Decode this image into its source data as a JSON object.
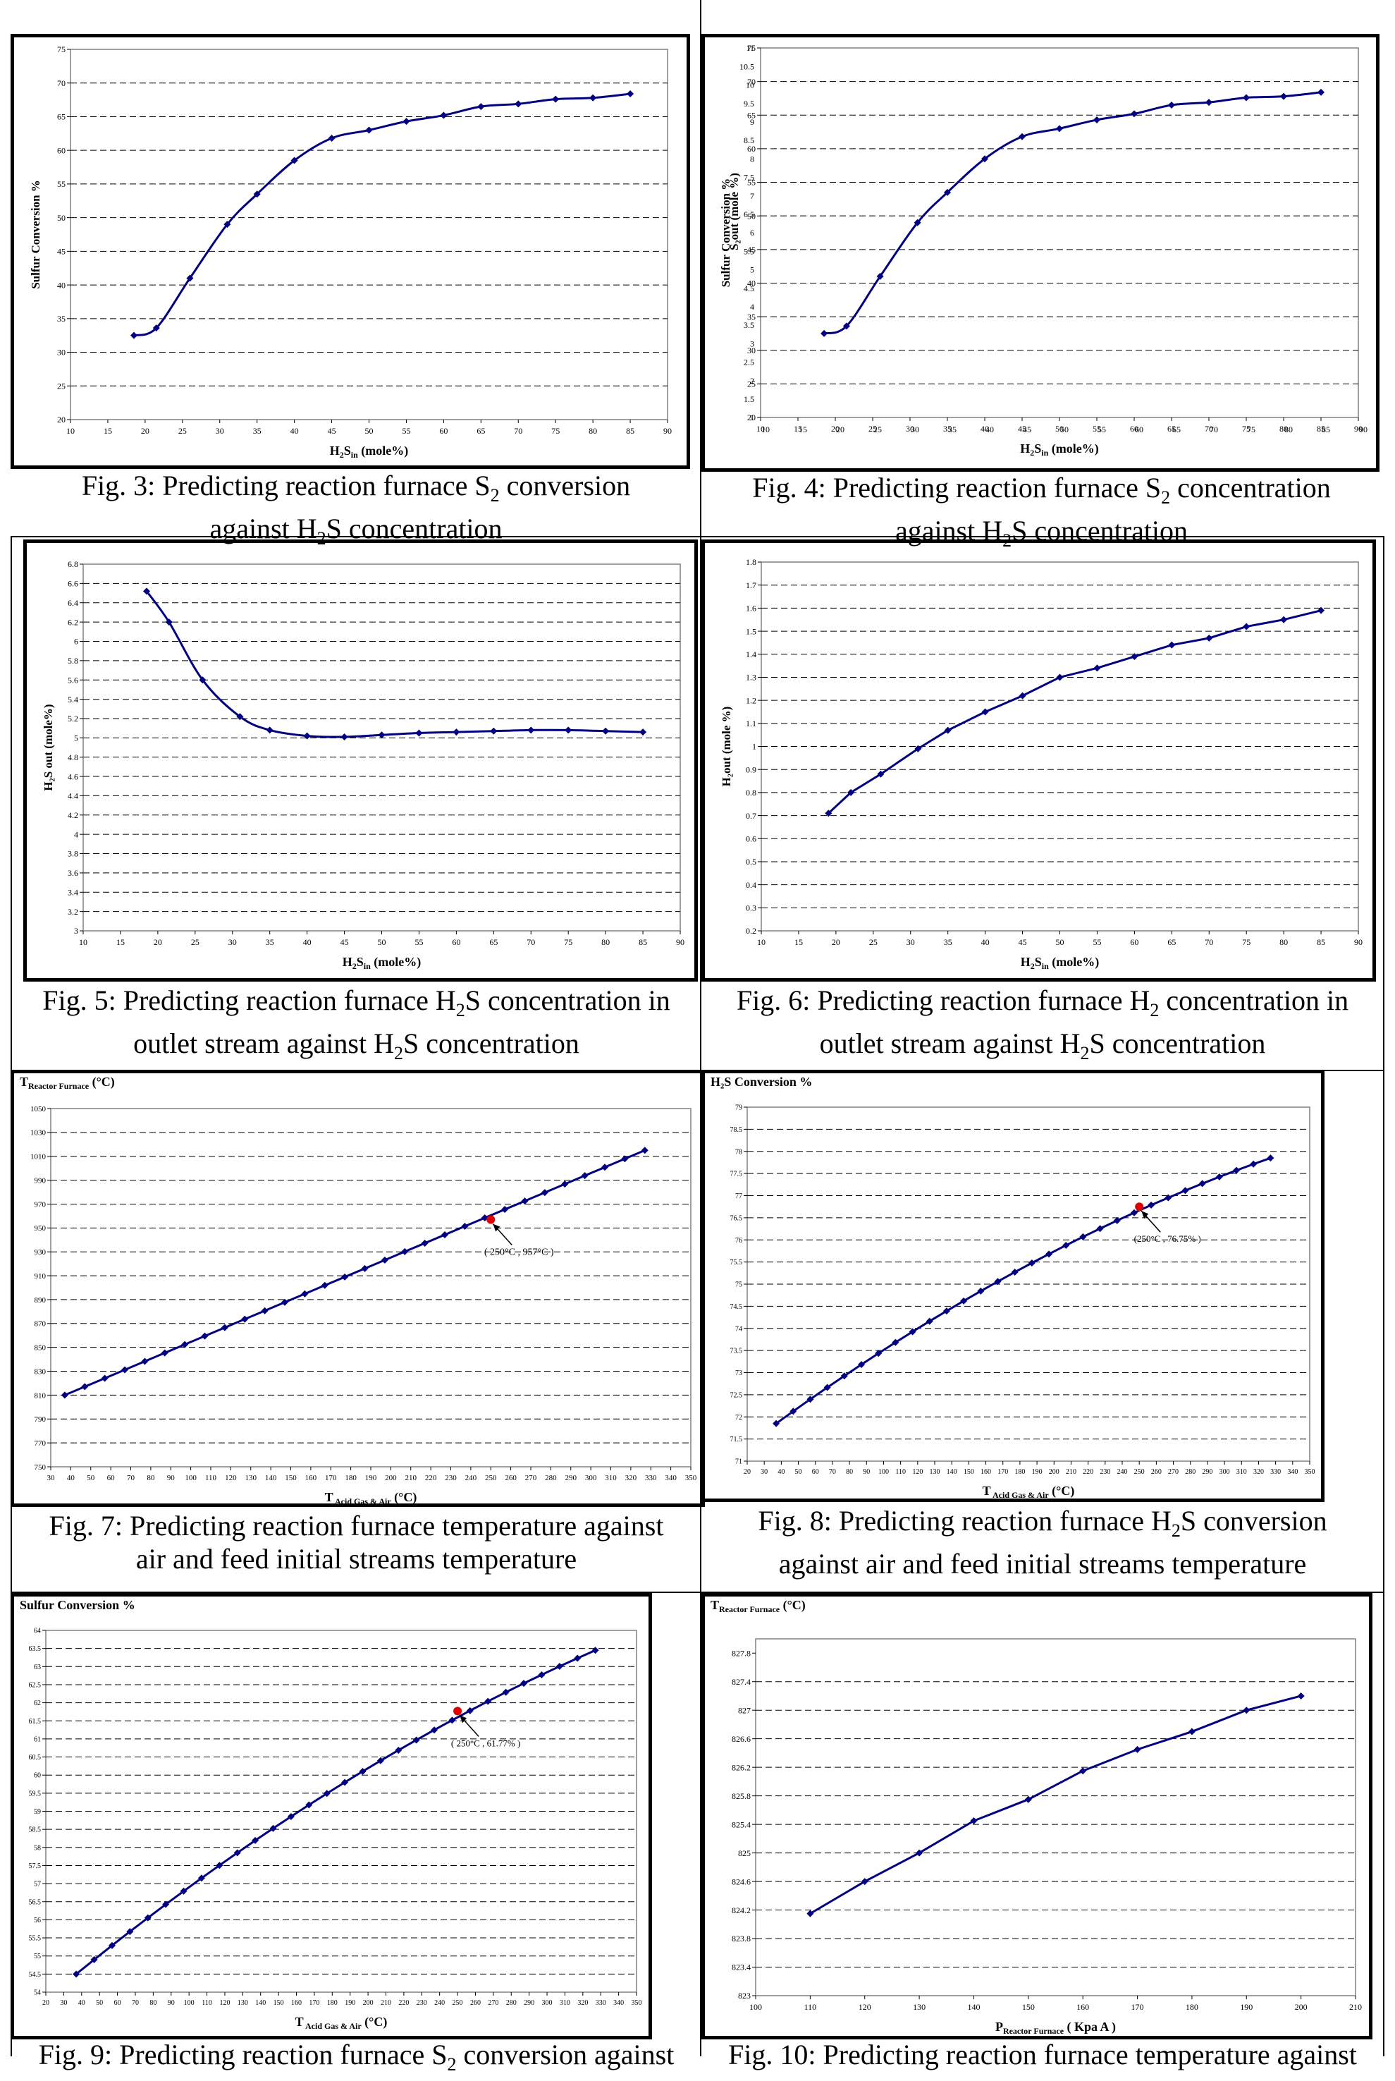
{
  "figures": [
    {
      "id": "fig3",
      "caption_line1": "Fig. 3: Predicting reaction furnace S",
      "caption_line1_sub": "2",
      "caption_line1_tail": "  conversion",
      "caption_line2": "against  H",
      "caption_line2_sub": "2",
      "caption_line2_tail": "S concentration"
    },
    {
      "id": "fig4",
      "caption_line1": "Fig. 4: Predicting reaction furnace S",
      "caption_line1_sub": "2",
      "caption_line1_tail": "  concentration",
      "caption_line2": "against  H",
      "caption_line2_sub": "2",
      "caption_line2_tail": "S concentration"
    },
    {
      "id": "fig5",
      "caption_line1": "Fig. 5: Predicting reaction furnace H",
      "caption_line1_sub": "2",
      "caption_line1_tail": "S concentration  in",
      "caption_line2": "outlet stream against H",
      "caption_line2_sub": "2",
      "caption_line2_tail": "S concentration"
    },
    {
      "id": "fig6",
      "caption_line1": "Fig. 6: Predicting reaction furnace H",
      "caption_line1_sub": "2",
      "caption_line1_tail": " concentration  in",
      "caption_line2": "outlet stream against H",
      "caption_line2_sub": "2",
      "caption_line2_tail": "S concentration"
    },
    {
      "id": "fig7",
      "caption_line1": "Fig. 7: Predicting reaction furnace temperature against",
      "caption_line1_sub": "",
      "caption_line1_tail": "",
      "caption_line2": "air and feed initial streams temperature",
      "caption_line2_sub": "",
      "caption_line2_tail": ""
    },
    {
      "id": "fig8",
      "caption_line1": "Fig. 8: Predicting reaction furnace H",
      "caption_line1_sub": "2",
      "caption_line1_tail": "S conversion",
      "caption_line2": "against air and feed initial streams temperature",
      "caption_line2_sub": "",
      "caption_line2_tail": ""
    },
    {
      "id": "fig9",
      "caption_line1": "Fig. 9: Predicting reaction furnace S",
      "caption_line1_sub": "2",
      "caption_line1_tail": " conversion against",
      "caption_line2": "",
      "caption_line2_sub": "",
      "caption_line2_tail": ""
    },
    {
      "id": "fig10",
      "caption_line1": "Fig. 10: Predicting reaction furnace temperature against",
      "caption_line1_sub": "",
      "caption_line1_tail": "",
      "caption_line2": "",
      "caption_line2_sub": "",
      "caption_line2_tail": ""
    }
  ],
  "chart_data": [
    {
      "id": "fig3",
      "type": "line",
      "title": "",
      "ylabel": "Sulfur Conversion %",
      "xlabel_main": "H",
      "xlabel_sub1": "2",
      "xlabel_mid": "S",
      "xlabel_sub2": "in",
      "xlabel_tail": " (mole%)",
      "xlim": [
        10,
        90
      ],
      "xticks": [
        10,
        15,
        20,
        25,
        30,
        35,
        40,
        45,
        50,
        55,
        60,
        65,
        70,
        75,
        80,
        85,
        90
      ],
      "ylim": [
        20,
        75
      ],
      "yticks": [
        20,
        25,
        30,
        35,
        40,
        45,
        50,
        55,
        60,
        65,
        70,
        75
      ],
      "x": [
        18.5,
        21.5,
        26,
        31,
        35,
        40,
        45,
        50,
        55,
        60,
        65,
        70,
        75,
        80,
        85
      ],
      "y": [
        32.5,
        33.6,
        41,
        49,
        53.5,
        58.5,
        61.8,
        63,
        64.3,
        65.2,
        66.5,
        66.9,
        67.6,
        67.8,
        68.4
      ],
      "smooth": true,
      "grid": true
    },
    {
      "id": "fig4",
      "type": "line",
      "title": "",
      "ylabel": "Sulfur Conversion %",
      "ylabel2": "S₂out (mole %)",
      "xlabel_main": "H",
      "xlabel_sub1": "2",
      "xlabel_mid": "S",
      "xlabel_sub2": "in",
      "xlabel_tail": " (mole%)",
      "xlim": [
        10,
        90
      ],
      "xticks": [
        10,
        15,
        20,
        25,
        30,
        35,
        40,
        45,
        50,
        55,
        60,
        65,
        70,
        75,
        80,
        85,
        90
      ],
      "ylim": [
        20,
        75
      ],
      "yticks": [
        20,
        25,
        30,
        35,
        40,
        45,
        50,
        55,
        60,
        65,
        70,
        75
      ],
      "yticks2": [
        "1",
        "1.5",
        "2",
        "2.5",
        "3",
        "3.5",
        "4",
        "4.5",
        "5",
        "5.5",
        "6",
        "6.5",
        "7",
        "7.5",
        "8",
        "8.5",
        "9",
        "9.5",
        "10",
        "10.5",
        "11"
      ],
      "x": [
        18.5,
        21.5,
        26,
        31,
        35,
        40,
        45,
        50,
        55,
        60,
        65,
        70,
        75,
        80,
        85
      ],
      "y": [
        32.5,
        33.6,
        41,
        49,
        53.5,
        58.5,
        61.8,
        63,
        64.3,
        65.2,
        66.5,
        66.9,
        67.6,
        67.8,
        68.4
      ],
      "smooth": true,
      "grid": true
    },
    {
      "id": "fig5",
      "type": "line",
      "title": "",
      "ylabel": "H₂S out (mole%)",
      "xlabel_main": "H",
      "xlabel_sub1": "2",
      "xlabel_mid": "S",
      "xlabel_sub2": "in",
      "xlabel_tail": " (mole%)",
      "xlim": [
        10,
        90
      ],
      "xticks": [
        10,
        15,
        20,
        25,
        30,
        35,
        40,
        45,
        50,
        55,
        60,
        65,
        70,
        75,
        80,
        85,
        90
      ],
      "ylim": [
        3,
        6.8
      ],
      "yticks": [
        3,
        3.2,
        3.4,
        3.6,
        3.8,
        4,
        4.2,
        4.4,
        4.6,
        4.8,
        5,
        5.2,
        5.4,
        5.6,
        5.8,
        6,
        6.2,
        6.4,
        6.6,
        6.8
      ],
      "x": [
        18.5,
        21.5,
        26,
        31,
        35,
        40,
        45,
        50,
        55,
        60,
        65,
        70,
        75,
        80,
        85
      ],
      "y": [
        6.52,
        6.2,
        5.6,
        5.22,
        5.08,
        5.02,
        5.01,
        5.03,
        5.05,
        5.06,
        5.07,
        5.08,
        5.08,
        5.07,
        5.06
      ],
      "smooth": true,
      "grid": true
    },
    {
      "id": "fig6",
      "type": "line",
      "title": "",
      "ylabel": "H₂out (mole %)",
      "xlabel_main": "H",
      "xlabel_sub1": "2",
      "xlabel_mid": "S",
      "xlabel_sub2": "in",
      "xlabel_tail": " (mole%)",
      "xlim": [
        10,
        90
      ],
      "xticks": [
        10,
        15,
        20,
        25,
        30,
        35,
        40,
        45,
        50,
        55,
        60,
        65,
        70,
        75,
        80,
        85,
        90
      ],
      "ylim": [
        0.2,
        1.8
      ],
      "yticks": [
        0.2,
        0.3,
        0.4,
        0.5,
        0.6,
        0.7,
        0.8,
        0.9,
        1,
        1.1,
        1.2,
        1.3,
        1.4,
        1.5,
        1.6,
        1.7,
        1.8
      ],
      "x": [
        19,
        22,
        26,
        31,
        35,
        40,
        45,
        50,
        55,
        60,
        65,
        70,
        75,
        80,
        85
      ],
      "y": [
        0.71,
        0.8,
        0.88,
        0.99,
        1.07,
        1.15,
        1.22,
        1.3,
        1.34,
        1.39,
        1.44,
        1.47,
        1.52,
        1.55,
        1.59
      ],
      "smooth": false,
      "grid": true
    },
    {
      "id": "fig7",
      "type": "line",
      "title": "",
      "ylabel_top": "T",
      "ylabel_top_sub": "Reactor Furnace",
      "ylabel_top_tail": " (°C)",
      "xlabel_main": "T",
      "xlabel_sub1": " Acid Gas & Air",
      "xlabel_mid": "",
      "xlabel_sub2": "",
      "xlabel_tail": " (°C)",
      "xlim": [
        30,
        350
      ],
      "xticks": [
        30,
        40,
        50,
        60,
        70,
        80,
        90,
        100,
        110,
        120,
        130,
        140,
        150,
        160,
        170,
        180,
        190,
        200,
        210,
        220,
        230,
        240,
        250,
        260,
        270,
        280,
        290,
        300,
        310,
        320,
        330,
        340,
        350
      ],
      "ylim": [
        750,
        1050
      ],
      "yticks": [
        750,
        770,
        790,
        810,
        830,
        850,
        870,
        890,
        910,
        930,
        950,
        970,
        990,
        1010,
        1030,
        1050
      ],
      "x_start": 37,
      "x_end": 327,
      "x_step": 10,
      "y_start": 810,
      "y_end": 1015,
      "highlight": {
        "x": 250,
        "y": 957,
        "label": "( 250°C , 957°C )"
      },
      "grid": true
    },
    {
      "id": "fig8",
      "type": "line",
      "title": "",
      "ylabel_top": "H₂S Conversion %",
      "xlabel_main": "T",
      "xlabel_sub1": " Acid Gas & Air",
      "xlabel_mid": "",
      "xlabel_sub2": "",
      "xlabel_tail": " (°C)",
      "xlim": [
        20,
        350
      ],
      "xticks": [
        20,
        30,
        40,
        50,
        60,
        70,
        80,
        90,
        100,
        110,
        120,
        130,
        140,
        150,
        160,
        170,
        180,
        190,
        200,
        210,
        220,
        230,
        240,
        250,
        260,
        270,
        280,
        290,
        300,
        310,
        320,
        330,
        340,
        350
      ],
      "ylim": [
        71,
        79
      ],
      "yticks": [
        71,
        71.5,
        72,
        72.5,
        73,
        73.5,
        74,
        74.5,
        75,
        75.5,
        76,
        76.5,
        77,
        77.5,
        78,
        78.5,
        79
      ],
      "x_start": 37,
      "x_end": 327,
      "x_step": 10,
      "y_start": 71.85,
      "y_end": 77.85,
      "curve": 0.35,
      "highlight": {
        "x": 250,
        "y": 76.75,
        "label": "(250°C , 76.75% )"
      },
      "grid": true
    },
    {
      "id": "fig9",
      "type": "line",
      "title": "",
      "ylabel_top": "Sulfur Conversion %",
      "xlabel_main": "T",
      "xlabel_sub1": " Acid Gas & Air",
      "xlabel_mid": "",
      "xlabel_sub2": "",
      "xlabel_tail": " (°C)",
      "xlim": [
        20,
        350
      ],
      "xticks": [
        20,
        30,
        40,
        50,
        60,
        70,
        80,
        90,
        100,
        110,
        120,
        130,
        140,
        150,
        160,
        170,
        180,
        190,
        200,
        210,
        220,
        230,
        240,
        250,
        260,
        270,
        280,
        290,
        300,
        310,
        320,
        330,
        340,
        350
      ],
      "ylim": [
        54,
        64
      ],
      "yticks": [
        54,
        54.5,
        55,
        55.5,
        56,
        56.5,
        57,
        57.5,
        58,
        58.5,
        59,
        59.5,
        60,
        60.5,
        61,
        61.5,
        62,
        62.5,
        63,
        63.5,
        64
      ],
      "x_start": 37,
      "x_end": 327,
      "x_step": 10,
      "y_start": 54.5,
      "y_end": 63.45,
      "curve": 0.3,
      "highlight": {
        "x": 250,
        "y": 61.77,
        "label": "( 250°C , 61.77% )"
      },
      "grid": true
    },
    {
      "id": "fig10",
      "type": "line",
      "title": "",
      "ylabel_top": "T",
      "ylabel_top_sub": "Reactor Furnace",
      "ylabel_top_tail": " (°C)",
      "xlabel_main": "P",
      "xlabel_sub1": "Reactor Furnace",
      "xlabel_mid": "",
      "xlabel_sub2": "",
      "xlabel_tail": " ( Kpa A )",
      "xlim": [
        100,
        210
      ],
      "xticks": [
        100,
        110,
        120,
        130,
        140,
        150,
        160,
        170,
        180,
        190,
        200,
        210
      ],
      "ylim": [
        823,
        828
      ],
      "yticks": [
        "823",
        "823.4",
        "823.8",
        "824.2",
        "824.6",
        "825",
        "825.4",
        "825.8",
        "826.2",
        "826.6",
        "827",
        "827.4",
        "827.8"
      ],
      "ytick_values": [
        823,
        823.4,
        823.8,
        824.2,
        824.6,
        825,
        825.4,
        825.8,
        826.2,
        826.6,
        827,
        827.4,
        827.8
      ],
      "x": [
        110,
        120,
        130,
        140,
        150,
        160,
        170,
        180,
        190,
        200
      ],
      "y": [
        824.15,
        824.6,
        825.0,
        825.45,
        825.75,
        826.15,
        826.45,
        826.7,
        827.0,
        827.2
      ],
      "smooth": false,
      "grid": true
    }
  ]
}
